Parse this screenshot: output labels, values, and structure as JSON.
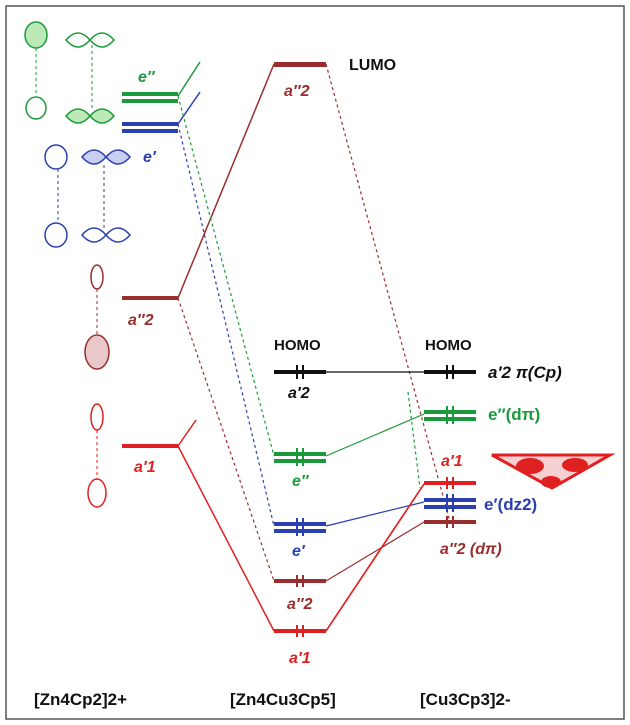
{
  "colors": {
    "green": "#1a9a3a",
    "blue": "#2b3fb0",
    "maroon": "#9a2e2e",
    "red": "#e02020",
    "black": "#111111",
    "border": "#555555"
  },
  "column_labels": {
    "left": "[Zn4Cp2]2+",
    "middle": "[Zn4Cu3Cp5]",
    "right": "[Cu3Cp3]2-"
  },
  "left_levels": {
    "e_pp": "e″",
    "e_p": "e′",
    "a2pp": "a″2",
    "a1p": "a′1"
  },
  "middle_levels": {
    "lumo_sym": "a″2",
    "lumo": "LUMO",
    "homo": "HOMO",
    "homo_sym": "a′2",
    "e_pp": "e″",
    "e_p": "e′",
    "a2pp": "a″2",
    "a1p": "a′1"
  },
  "right_levels": {
    "homo": "HOMO",
    "a2p_pi": "a′2 π(Cp)",
    "e_pp_dpi": "e″(dπ)",
    "a1p": "a′1",
    "e_p_dz2": "e′(dz2)",
    "a2pp_dpi": "a″2 (dπ)"
  },
  "orbital_icons": [
    "green-d-orbital",
    "blue-d-orbital",
    "maroon-p-orbital",
    "red-s-orbital",
    "red-triangle-orbital"
  ]
}
